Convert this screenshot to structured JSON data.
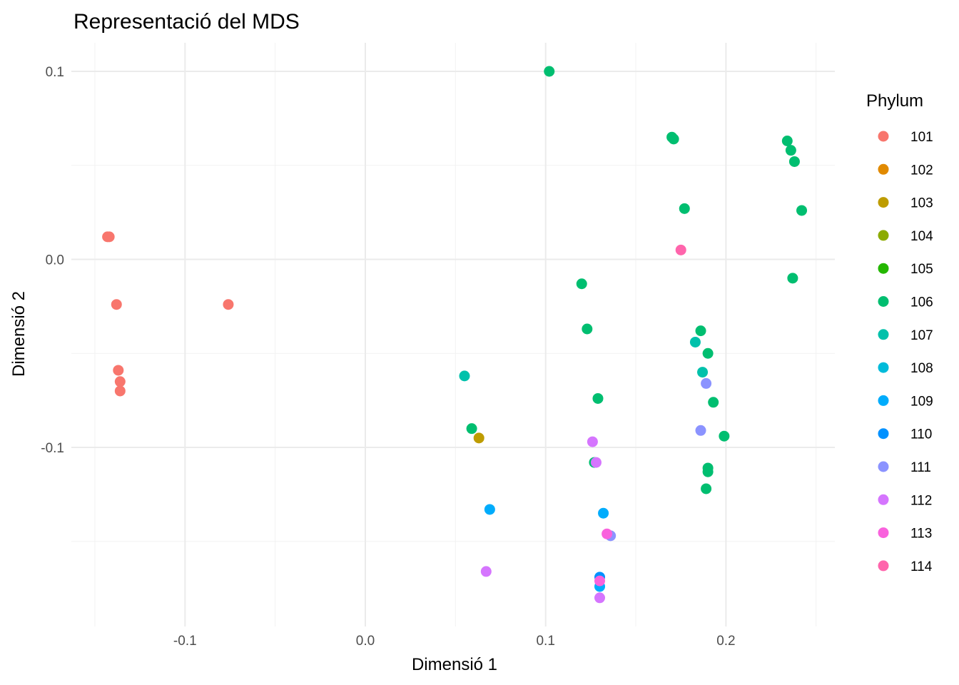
{
  "chart_data": {
    "type": "scatter",
    "title": "Representació del MDS",
    "xlabel": "Dimensió 1",
    "ylabel": "Dimensió 2",
    "xlim": [
      -0.15,
      0.25
    ],
    "ylim": [
      -0.19,
      0.11
    ],
    "x_ticks": [
      -0.1,
      0.0,
      0.1,
      0.2
    ],
    "x_tick_labels": [
      "-0.1",
      "0.0",
      "0.1",
      "0.2"
    ],
    "y_ticks": [
      -0.1,
      0.0,
      0.1
    ],
    "y_tick_labels": [
      "-0.1",
      "0.0",
      "0.1"
    ],
    "grid": true,
    "legend": {
      "title": "Phylum",
      "position": "right",
      "entries": [
        {
          "label": "101",
          "color": "#F8766D"
        },
        {
          "label": "102",
          "color": "#E18A00"
        },
        {
          "label": "103",
          "color": "#BE9C00"
        },
        {
          "label": "104",
          "color": "#8CAB00"
        },
        {
          "label": "105",
          "color": "#24B700"
        },
        {
          "label": "106",
          "color": "#00BE70"
        },
        {
          "label": "107",
          "color": "#00C1AB"
        },
        {
          "label": "108",
          "color": "#00BBDA"
        },
        {
          "label": "109",
          "color": "#00ACFC"
        },
        {
          "label": "110",
          "color": "#0091FF"
        },
        {
          "label": "111",
          "color": "#8B93FF"
        },
        {
          "label": "112",
          "color": "#D575FE"
        },
        {
          "label": "113",
          "color": "#F962DD"
        },
        {
          "label": "114",
          "color": "#FF65AC"
        }
      ]
    },
    "series": [
      {
        "name": "101",
        "points": [
          [
            -0.143,
            0.012
          ],
          [
            -0.142,
            0.012
          ],
          [
            -0.138,
            -0.024
          ],
          [
            -0.076,
            -0.024
          ],
          [
            -0.137,
            -0.059
          ],
          [
            -0.136,
            -0.065
          ],
          [
            -0.136,
            -0.07
          ]
        ]
      },
      {
        "name": "103",
        "points": [
          [
            0.063,
            -0.095
          ]
        ]
      },
      {
        "name": "106",
        "points": [
          [
            0.102,
            0.1
          ],
          [
            0.17,
            0.065
          ],
          [
            0.171,
            0.064
          ],
          [
            0.234,
            0.063
          ],
          [
            0.236,
            0.058
          ],
          [
            0.238,
            0.052
          ],
          [
            0.177,
            0.027
          ],
          [
            0.242,
            0.026
          ],
          [
            0.237,
            -0.01
          ],
          [
            0.12,
            -0.013
          ],
          [
            0.123,
            -0.037
          ],
          [
            0.186,
            -0.038
          ],
          [
            0.19,
            -0.05
          ],
          [
            0.129,
            -0.074
          ],
          [
            0.193,
            -0.076
          ],
          [
            0.059,
            -0.09
          ],
          [
            0.199,
            -0.094
          ],
          [
            0.19,
            -0.111
          ],
          [
            0.19,
            -0.113
          ],
          [
            0.189,
            -0.122
          ],
          [
            0.127,
            -0.108
          ]
        ]
      },
      {
        "name": "107",
        "points": [
          [
            0.055,
            -0.062
          ],
          [
            0.183,
            -0.044
          ],
          [
            0.187,
            -0.06
          ]
        ]
      },
      {
        "name": "109",
        "points": [
          [
            0.069,
            -0.133
          ],
          [
            0.132,
            -0.135
          ],
          [
            0.13,
            -0.174
          ]
        ]
      },
      {
        "name": "110",
        "points": [
          [
            0.13,
            -0.169
          ]
        ]
      },
      {
        "name": "111",
        "points": [
          [
            0.189,
            -0.066
          ],
          [
            0.186,
            -0.091
          ],
          [
            0.136,
            -0.147
          ]
        ]
      },
      {
        "name": "112",
        "points": [
          [
            0.126,
            -0.097
          ],
          [
            0.128,
            -0.108
          ],
          [
            0.067,
            -0.166
          ],
          [
            0.13,
            -0.18
          ]
        ]
      },
      {
        "name": "113",
        "points": [
          [
            0.134,
            -0.146
          ],
          [
            0.13,
            -0.171
          ]
        ]
      },
      {
        "name": "114",
        "points": [
          [
            0.175,
            0.005
          ]
        ]
      }
    ]
  }
}
